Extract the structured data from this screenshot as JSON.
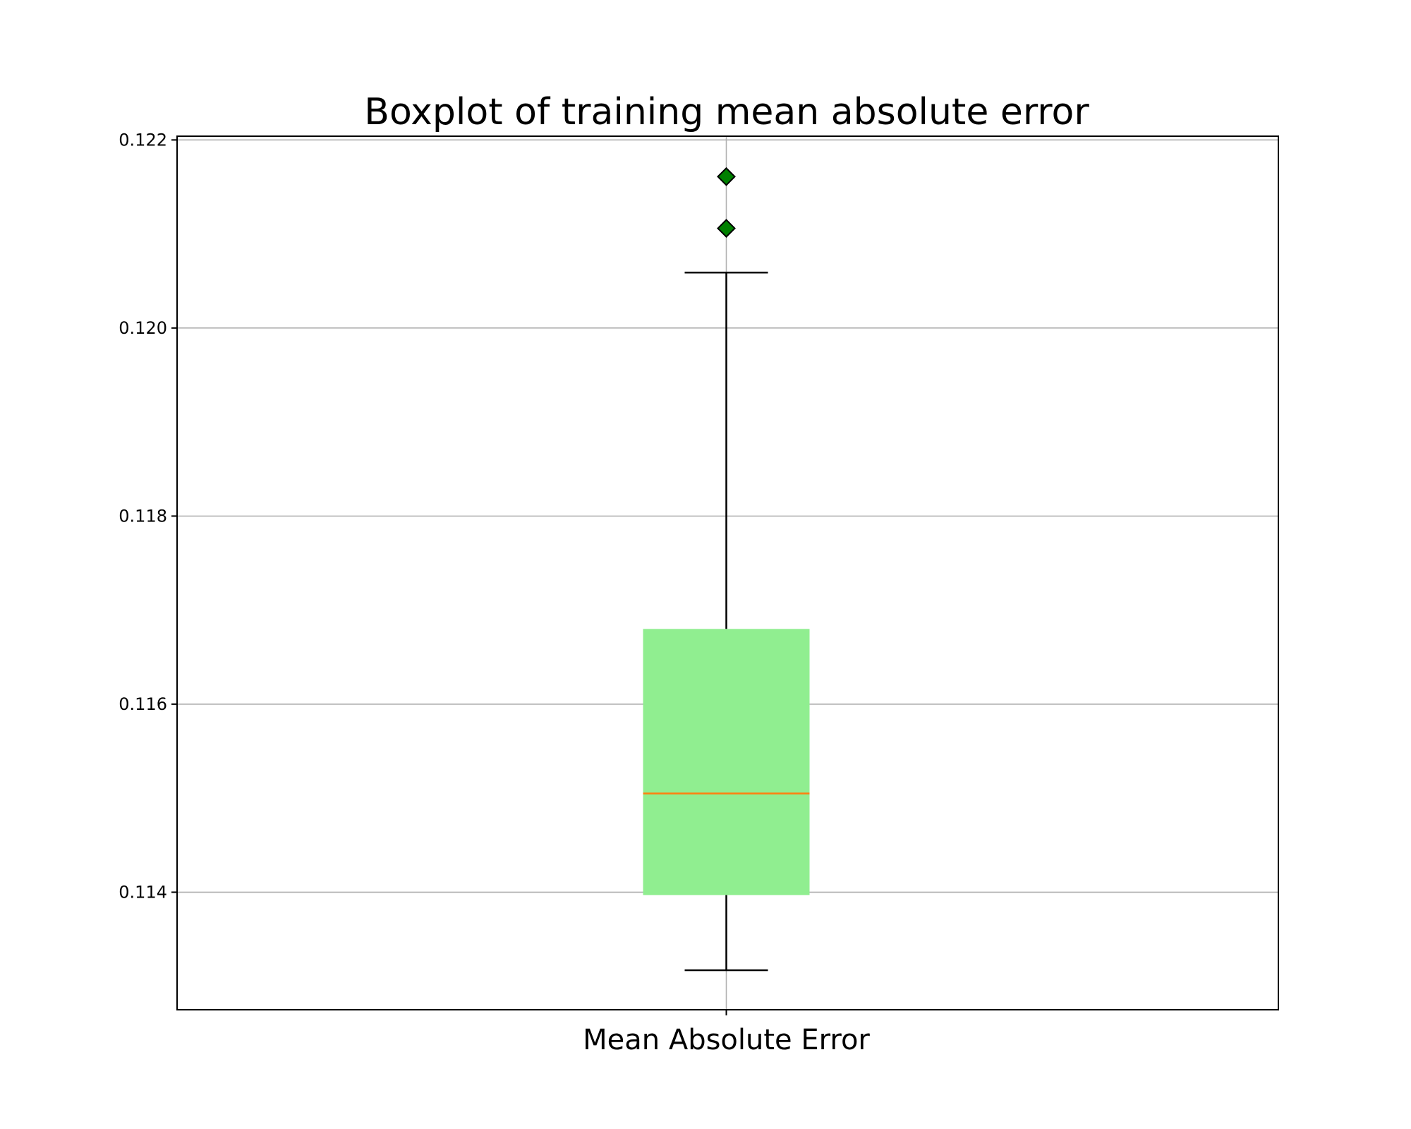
{
  "chart_data": {
    "type": "boxplot",
    "title": "Boxplot of training mean absolute error",
    "xlabel": "",
    "ylabel": "",
    "categories": [
      "Mean Absolute Error"
    ],
    "boxes": [
      {
        "category": "Mean Absolute Error",
        "whisker_low": 0.11317,
        "q1": 0.11397,
        "median": 0.11505,
        "q3": 0.1168,
        "whisker_high": 0.12059,
        "outliers": [
          0.12106,
          0.12161
        ]
      }
    ],
    "ylim": [
      0.11275,
      0.12204
    ],
    "yticks": [
      0.114,
      0.116,
      0.118,
      0.12,
      0.122
    ],
    "ytick_labels": [
      "0.114",
      "0.116",
      "0.118",
      "0.120",
      "0.122"
    ],
    "grid": true,
    "legend": "none",
    "colors": {
      "box_fill": "#90ee90",
      "median_line": "#ff7f0e",
      "whisker": "#000000",
      "outlier_fill": "#008000",
      "outlier_edge": "#000000",
      "grid": "#b0b0b0",
      "axes": "#000000"
    }
  }
}
